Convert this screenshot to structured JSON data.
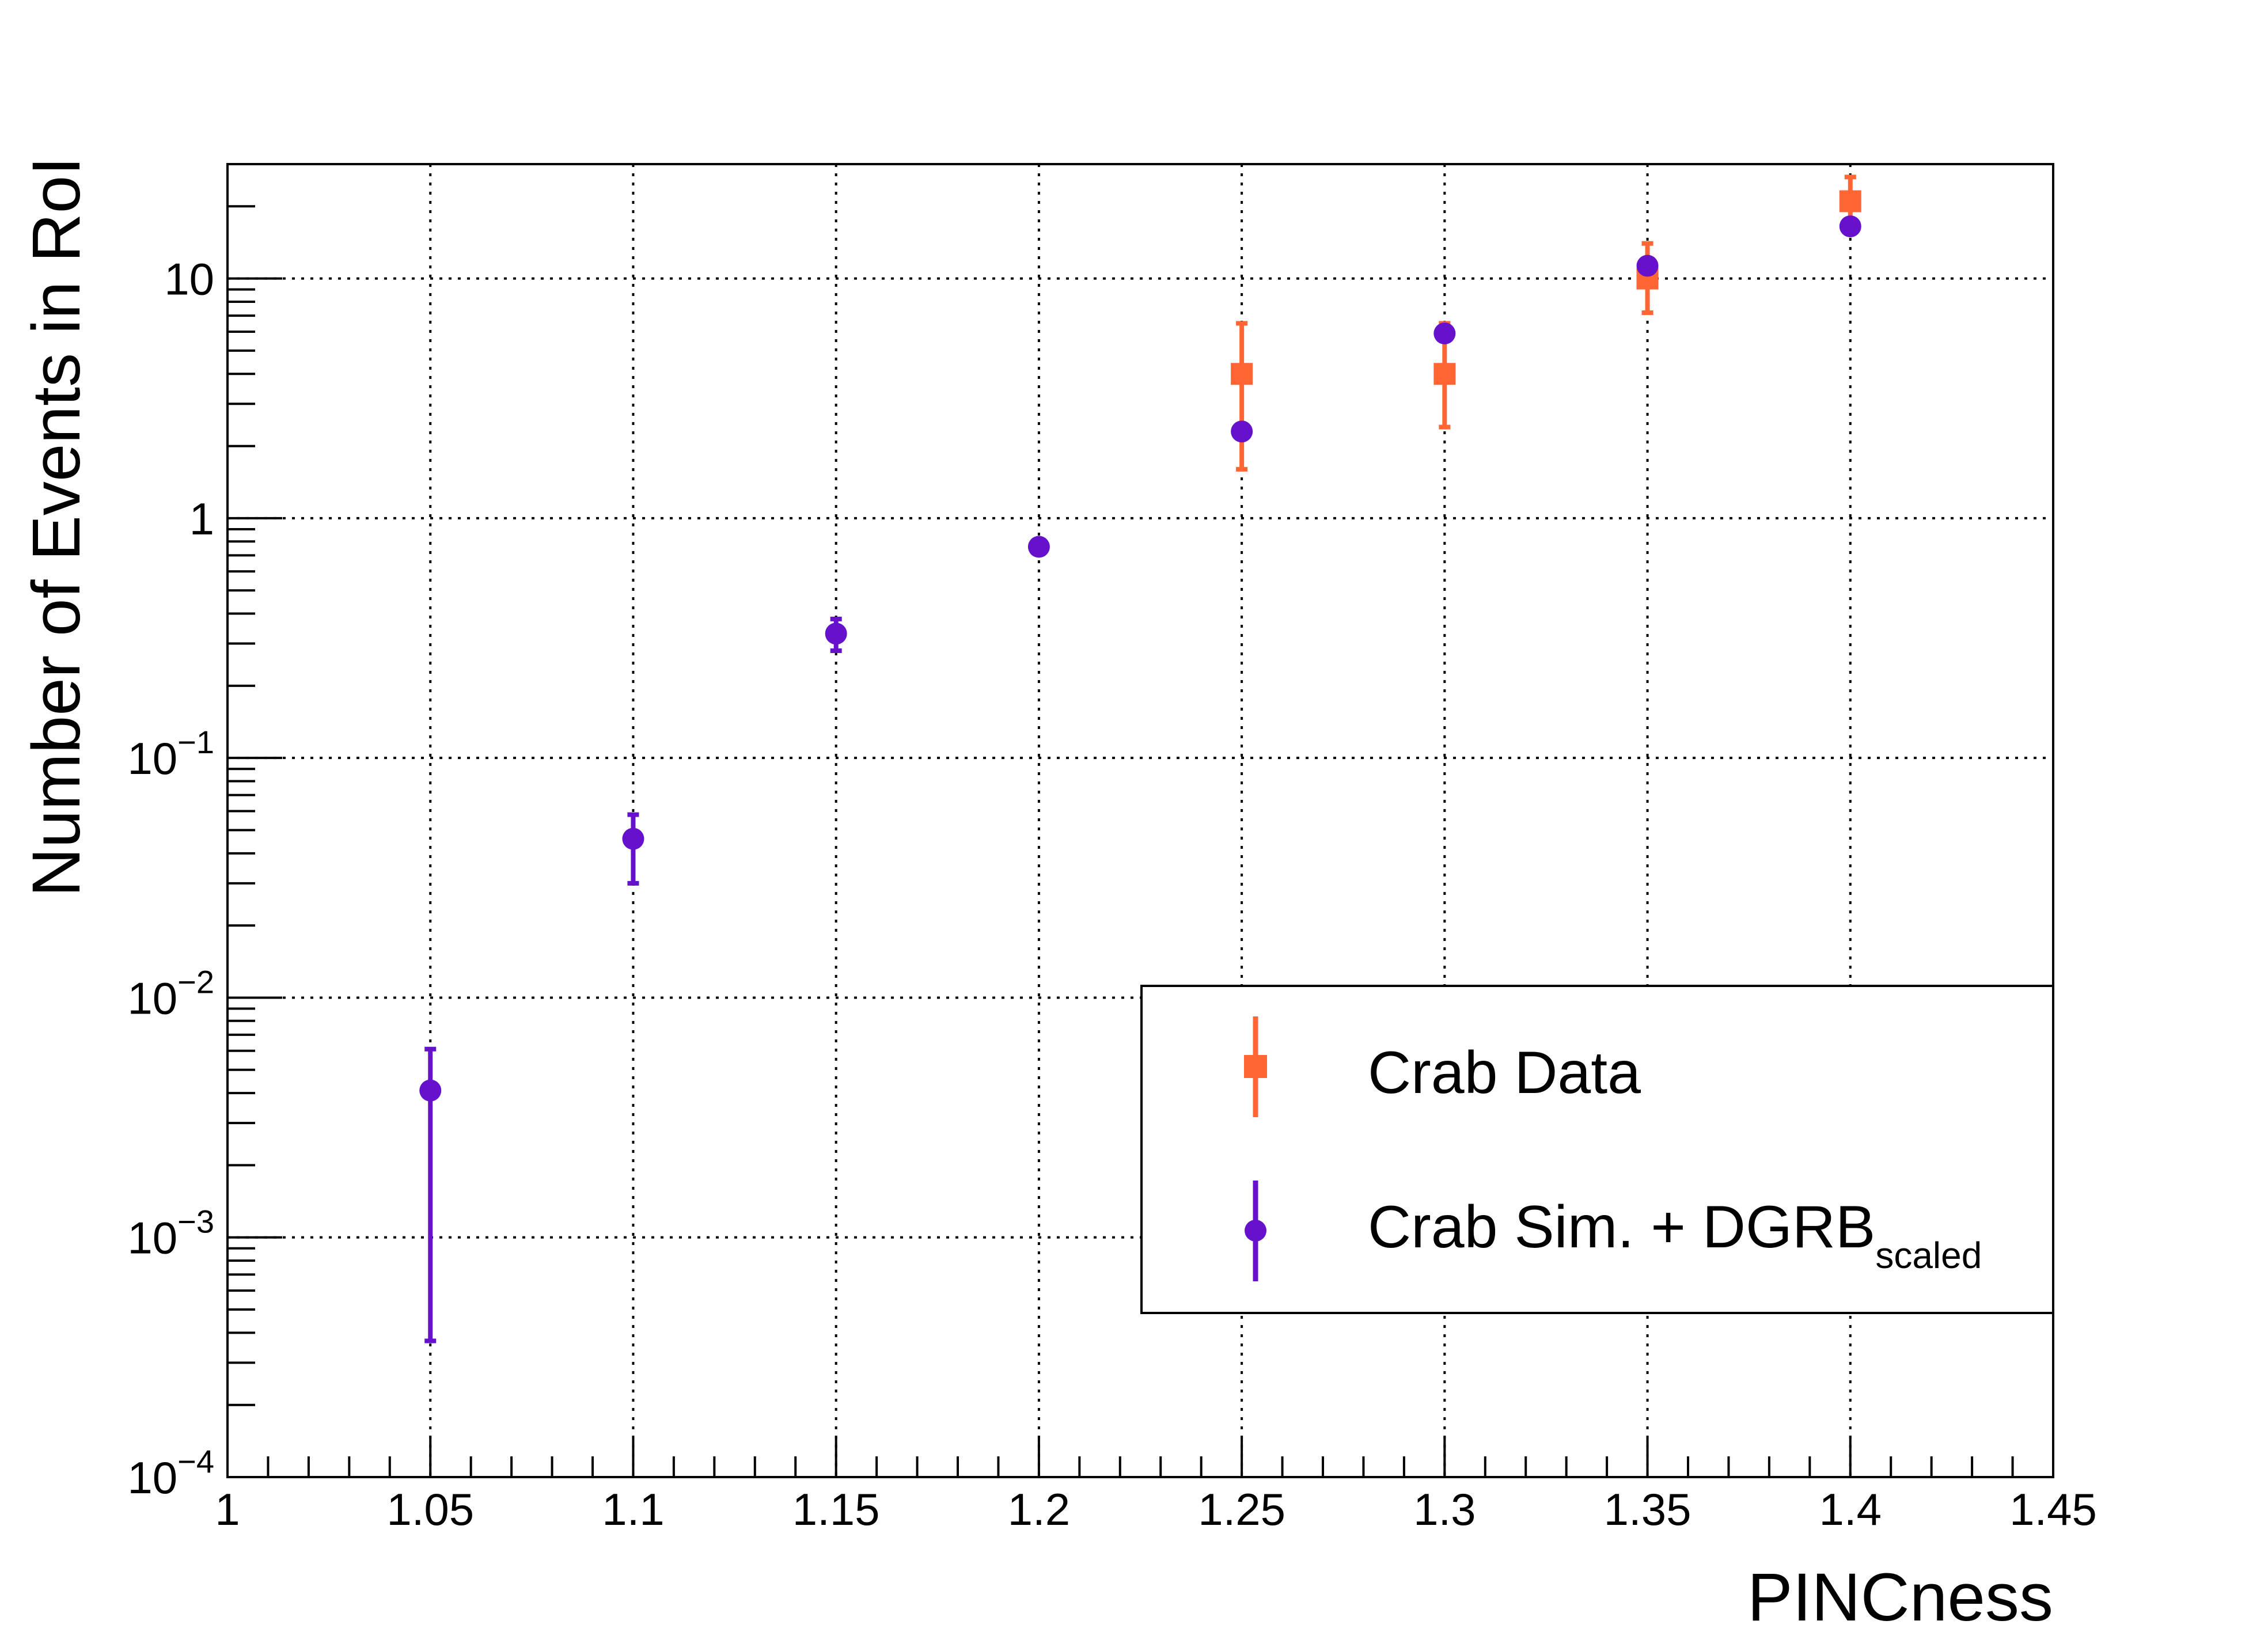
{
  "chart_data": {
    "type": "scatter",
    "xlabel": "PINCness",
    "ylabel": "Number of Events in RoI",
    "xlim": [
      1.0,
      1.45
    ],
    "ylim": [
      0.0001,
      30
    ],
    "y_scale": "log",
    "grid": true,
    "legend_position": "bottom-right",
    "x_ticks": [
      "1",
      "1.05",
      "1.1",
      "1.15",
      "1.2",
      "1.25",
      "1.3",
      "1.35",
      "1.4",
      "1.45"
    ],
    "y_ticks": [
      {
        "value": 0.0001,
        "base": "10",
        "exp": "−4"
      },
      {
        "value": 0.001,
        "base": "10",
        "exp": "−3"
      },
      {
        "value": 0.01,
        "base": "10",
        "exp": "−2"
      },
      {
        "value": 0.1,
        "base": "10",
        "exp": "−1"
      },
      {
        "value": 1,
        "base": "1",
        "exp": ""
      },
      {
        "value": 10,
        "base": "10",
        "exp": ""
      }
    ],
    "series": [
      {
        "name": "Crab Data",
        "marker": "square",
        "color": "#ff6633",
        "points": [
          {
            "x": 1.25,
            "y": 4.0,
            "ylo": 1.6,
            "yhi": 6.5
          },
          {
            "x": 1.3,
            "y": 4.0,
            "ylo": 2.4,
            "yhi": 6.5
          },
          {
            "x": 1.35,
            "y": 10.0,
            "ylo": 7.2,
            "yhi": 14.0
          },
          {
            "x": 1.4,
            "y": 21.0,
            "ylo": 17.0,
            "yhi": 26.5
          }
        ]
      },
      {
        "name_main": "Crab Sim. + DGRB",
        "name_sub": "scaled",
        "marker": "circle",
        "color": "#6611cc",
        "points": [
          {
            "x": 1.05,
            "y": 0.0041,
            "ylo": 0.00037,
            "yhi": 0.0061
          },
          {
            "x": 1.1,
            "y": 0.046,
            "ylo": 0.03,
            "yhi": 0.058
          },
          {
            "x": 1.15,
            "y": 0.33,
            "ylo": 0.28,
            "yhi": 0.38
          },
          {
            "x": 1.2,
            "y": 0.76,
            "ylo": 0.74,
            "yhi": 0.78
          },
          {
            "x": 1.25,
            "y": 2.3,
            "ylo": 2.25,
            "yhi": 2.35
          },
          {
            "x": 1.3,
            "y": 5.9,
            "ylo": 5.8,
            "yhi": 6.0
          },
          {
            "x": 1.35,
            "y": 11.3,
            "ylo": 11.1,
            "yhi": 11.5
          },
          {
            "x": 1.4,
            "y": 16.5,
            "ylo": 16.2,
            "yhi": 16.8
          }
        ]
      }
    ]
  }
}
